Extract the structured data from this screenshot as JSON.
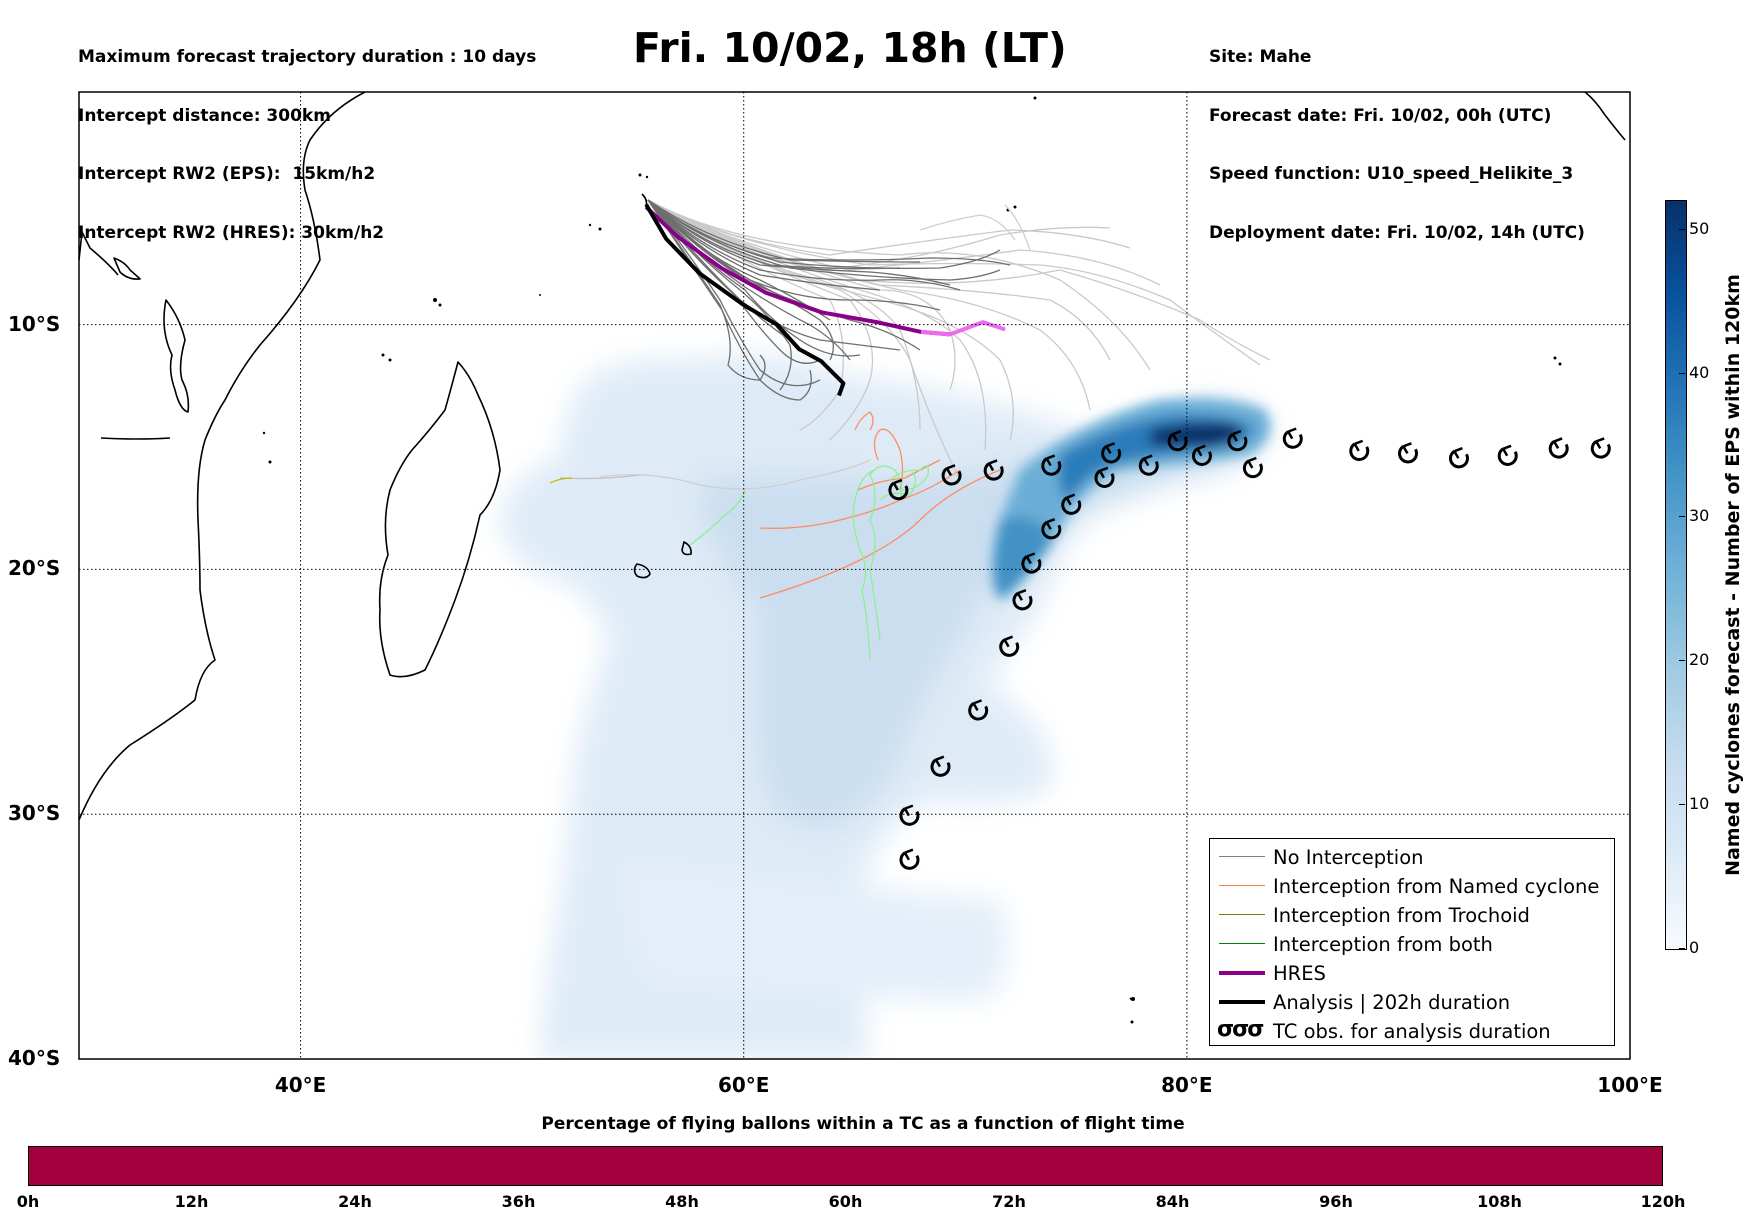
{
  "header": {
    "info_left": [
      "Maximum forecast trajectory duration : 10 days",
      "Intercept distance: 300km",
      "Intercept RW2 (EPS):  15km/h2",
      "Intercept RW2 (HRES): 30km/h2"
    ],
    "title": "Fri. 10/02, 18h (LT)",
    "info_right": [
      "Site: Mahe",
      "Forecast date: Fri. 10/02, 00h (UTC)",
      "Speed function: U10_speed_Helikite_3",
      "Deployment date: Fri. 10/02, 14h (UTC)"
    ]
  },
  "map": {
    "lon_range": [
      30,
      100
    ],
    "lat_range": [
      -40,
      -0.5
    ],
    "lon_ticks": [
      {
        "value": 40,
        "label": "40°E"
      },
      {
        "value": 60,
        "label": "60°E"
      },
      {
        "value": 80,
        "label": "80°E"
      },
      {
        "value": 100,
        "label": "100°E"
      }
    ],
    "lat_ticks": [
      {
        "value": -10,
        "label": "10°S"
      },
      {
        "value": -20,
        "label": "20°S"
      },
      {
        "value": -30,
        "label": "30°S"
      },
      {
        "value": -40,
        "label": "40°S"
      }
    ],
    "tc_observations": [
      [
        67.0,
        -16.8
      ],
      [
        69.4,
        -16.2
      ],
      [
        71.3,
        -16.0
      ],
      [
        73.9,
        -15.8
      ],
      [
        76.6,
        -15.3
      ],
      [
        79.6,
        -14.8
      ],
      [
        82.3,
        -14.8
      ],
      [
        84.8,
        -14.7
      ],
      [
        87.8,
        -15.2
      ],
      [
        90.0,
        -15.3
      ],
      [
        92.3,
        -15.5
      ],
      [
        94.5,
        -15.4
      ],
      [
        96.8,
        -15.1
      ],
      [
        98.7,
        -15.1
      ],
      [
        83.0,
        -15.9
      ],
      [
        80.7,
        -15.4
      ],
      [
        78.3,
        -15.8
      ],
      [
        76.3,
        -16.3
      ],
      [
        74.8,
        -17.4
      ],
      [
        73.9,
        -18.4
      ],
      [
        73.0,
        -19.8
      ],
      [
        72.6,
        -21.3
      ],
      [
        72.0,
        -23.2
      ],
      [
        70.6,
        -25.8
      ],
      [
        68.9,
        -28.1
      ],
      [
        67.5,
        -30.1
      ],
      [
        67.5,
        -31.9
      ]
    ],
    "hres_track": [
      [
        55.6,
        -5.2
      ],
      [
        57.0,
        -6.4
      ],
      [
        59.0,
        -7.7
      ],
      [
        61.0,
        -8.7
      ],
      [
        63.5,
        -9.5
      ],
      [
        66.0,
        -9.9
      ],
      [
        68.0,
        -10.3
      ],
      [
        69.3,
        -10.4
      ],
      [
        70.8,
        -9.9
      ],
      [
        71.8,
        -10.2
      ]
    ],
    "analysis_track": [
      [
        55.6,
        -5.1
      ],
      [
        56.5,
        -6.5
      ],
      [
        58.0,
        -7.9
      ],
      [
        60.0,
        -9.2
      ],
      [
        61.5,
        -10.0
      ],
      [
        62.5,
        -11.0
      ],
      [
        63.5,
        -11.5
      ],
      [
        64.5,
        -12.4
      ],
      [
        64.3,
        -12.9
      ]
    ],
    "colors": {
      "hres": "#8b008b",
      "hres_tail": "#ee6aee",
      "analysis": "#000000",
      "no_interception": "#808080",
      "named_cyclone": "#ff7f50",
      "trochoid": "#808000",
      "both": "#008000",
      "grid": "#000000"
    }
  },
  "legend": [
    {
      "label": "No Interception",
      "color": "#808080",
      "width": 1.2
    },
    {
      "label": "Interception from Named cyclone",
      "color": "#ff7f50",
      "width": 1.2
    },
    {
      "label": "Interception from Trochoid",
      "color": "#808000",
      "width": 1.2
    },
    {
      "label": "Interception from both",
      "color": "#008000",
      "width": 1.2
    },
    {
      "label": "HRES",
      "color": "#8b008b",
      "width": 4
    },
    {
      "label": "Analysis | 202h duration",
      "color": "#000000",
      "width": 4
    },
    {
      "label": "TC obs. for analysis duration",
      "icon": "σσσ"
    }
  ],
  "colorbar_right": {
    "label": "Named cyclones forecast - Number of EPS within 120km",
    "range": [
      0,
      52
    ],
    "ticks": [
      "0",
      "10",
      "20",
      "30",
      "40",
      "50"
    ],
    "tick_values": [
      0,
      10,
      20,
      30,
      40,
      50
    ]
  },
  "colorbar_bottom": {
    "title": "Percentage of flying ballons within a TC as a function of flight time",
    "ticks": [
      "0h",
      "12h",
      "24h",
      "36h",
      "48h",
      "60h",
      "72h",
      "84h",
      "96h",
      "108h",
      "120h"
    ],
    "color": "#a3003e"
  }
}
